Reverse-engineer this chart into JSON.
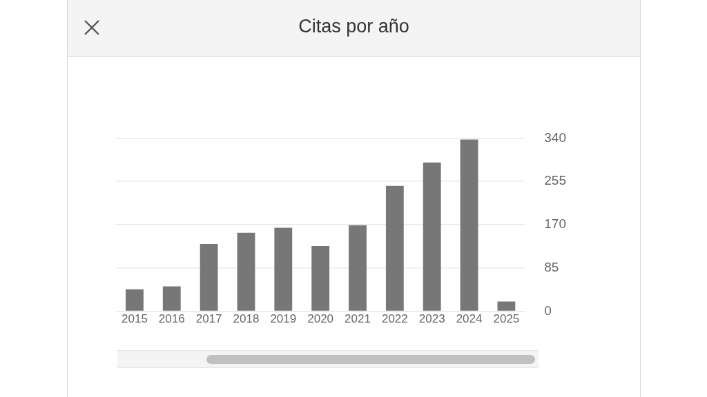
{
  "chart_data": {
    "type": "bar",
    "title": "Citas por año",
    "categories": [
      "2015",
      "2016",
      "2017",
      "2018",
      "2019",
      "2020",
      "2021",
      "2022",
      "2023",
      "2024",
      "2025"
    ],
    "values": [
      43,
      49,
      132,
      154,
      164,
      128,
      169,
      246,
      292,
      337,
      19
    ],
    "color": "#777777",
    "ylim": [
      0,
      340
    ],
    "yticks": [
      0,
      85,
      170,
      255,
      340
    ],
    "grid": "y",
    "legend": false
  }
}
